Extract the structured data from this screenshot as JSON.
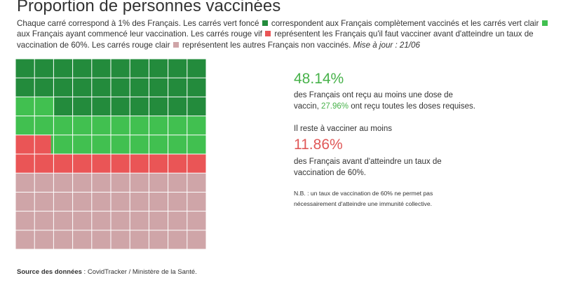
{
  "title": "Proportion de personnes vaccinées",
  "intro": {
    "p1": "Chaque carré correspond à 1% des Français. Les carrés vert foncé",
    "p2": "correspondent aux Français complètement vaccinés et les carrés vert clair",
    "p3": "aux Français ayant commencé leur vaccination. Les carrés rouge vif",
    "p4": "représentent les Français qu'il faut vacciner avant d'atteindre un taux de vaccination de 60%. Les carrés rouge clair",
    "p5": "représentent les autres Français non vaccinés.",
    "update": "Mise à jour : 21/06"
  },
  "stats": {
    "one_dose_pct": "48.14%",
    "one_dose_text_1": "des Français ont reçu au moins une dose de vaccin,",
    "full_pct": "27.96%",
    "one_dose_text_2": "ont reçu toutes les doses requises.",
    "remaining_label": "Il reste à vacciner au moins",
    "remaining_pct": "11.86%",
    "remaining_text": "des Français avant d'atteindre un taux de vaccination de 60%.",
    "note_line1": "N.B. : un taux de vaccination de 60% ne permet pas",
    "note_line2": "nécessairement d'atteindre une immunité collective."
  },
  "source": {
    "label": "Source des données",
    "text": " : CovidTracker / Ministère de la Santé."
  },
  "colors": {
    "dark_green": "#238b3c",
    "light_green": "#41c050",
    "red": "#ea5556",
    "light_red": "#cfa5a8",
    "grid_line": "#ffffff"
  },
  "chart_data": {
    "type": "waffle",
    "rows": 10,
    "cols": 10,
    "unit": "1% des Français",
    "categories": [
      {
        "name": "vert foncé",
        "value": 27.96,
        "color": "#238b3c"
      },
      {
        "name": "vert clair",
        "value": 20.18,
        "color": "#41c050"
      },
      {
        "name": "rouge vif",
        "value": 11.86,
        "color": "#ea5556"
      },
      {
        "name": "rouge clair",
        "value": 40.0,
        "color": "#cfa5a8"
      }
    ]
  }
}
